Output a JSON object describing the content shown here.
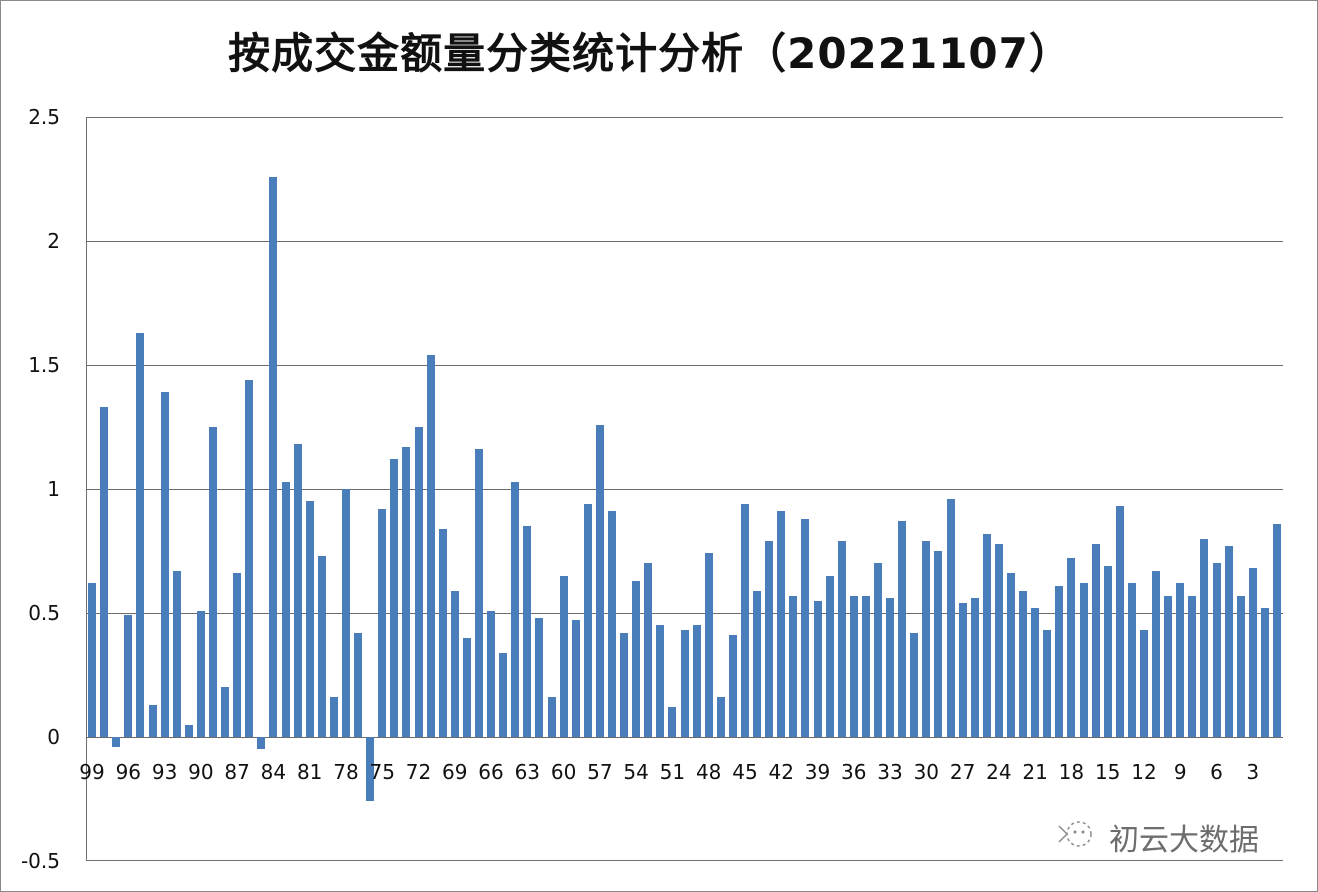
{
  "chart_data": {
    "type": "bar",
    "title": "按成交金额量分类统计分析（20221107）",
    "xlabel": "",
    "ylabel": "",
    "ylim": [
      -0.5,
      2.5
    ],
    "yticks": [
      "2.5",
      "2",
      "1.5",
      "1",
      "0.5",
      "0",
      "-0.5"
    ],
    "grid": true,
    "legend": null,
    "bar_color": "#4a7ebb",
    "categories": [
      99,
      98,
      97,
      96,
      95,
      94,
      93,
      92,
      91,
      90,
      89,
      88,
      87,
      86,
      85,
      84,
      83,
      82,
      81,
      80,
      79,
      78,
      77,
      76,
      75,
      74,
      73,
      72,
      71,
      70,
      69,
      68,
      67,
      66,
      65,
      64,
      63,
      62,
      61,
      60,
      59,
      58,
      57,
      56,
      55,
      54,
      53,
      52,
      51,
      50,
      49,
      48,
      47,
      46,
      45,
      44,
      43,
      42,
      41,
      40,
      39,
      38,
      37,
      36,
      35,
      34,
      33,
      32,
      31,
      30,
      29,
      28,
      27,
      26,
      25,
      24,
      23,
      22,
      21,
      20,
      19,
      18,
      17,
      16,
      15,
      14,
      13,
      12,
      11,
      10,
      9,
      8,
      7,
      6,
      5,
      4,
      3,
      2,
      1
    ],
    "xtick_labels": [
      "99",
      "96",
      "93",
      "90",
      "87",
      "84",
      "81",
      "78",
      "75",
      "72",
      "69",
      "66",
      "63",
      "60",
      "57",
      "54",
      "51",
      "48",
      "45",
      "42",
      "39",
      "36",
      "33",
      "30",
      "27",
      "24",
      "21",
      "18",
      "15",
      "12",
      "9",
      "6",
      "3"
    ],
    "values": [
      0.62,
      1.33,
      -0.04,
      0.49,
      1.63,
      0.13,
      1.39,
      0.67,
      0.05,
      0.51,
      1.25,
      0.2,
      0.66,
      1.44,
      -0.05,
      2.26,
      1.03,
      1.18,
      0.95,
      0.73,
      0.16,
      1.0,
      0.42,
      -0.26,
      0.92,
      1.12,
      1.17,
      1.25,
      1.54,
      0.84,
      0.59,
      0.4,
      1.16,
      0.51,
      0.34,
      1.03,
      0.85,
      0.48,
      0.16,
      0.65,
      0.47,
      0.94,
      1.26,
      0.91,
      0.42,
      0.63,
      0.7,
      0.45,
      0.12,
      0.43,
      0.45,
      0.74,
      0.16,
      0.41,
      0.94,
      0.59,
      0.79,
      0.91,
      0.57,
      0.88,
      0.55,
      0.65,
      0.79,
      0.57,
      0.57,
      0.7,
      0.56,
      0.87,
      0.42,
      0.79,
      0.75,
      0.96,
      0.54,
      0.56,
      0.82,
      0.78,
      0.66,
      0.59,
      0.52,
      0.43,
      0.61,
      0.72,
      0.62,
      0.78,
      0.69,
      0.93,
      0.62,
      0.43,
      0.67,
      0.57,
      0.62,
      0.57,
      0.8,
      0.7,
      0.77,
      0.57,
      0.68,
      0.52,
      0.86
    ]
  },
  "watermark": {
    "icon": "wechat-official-account-icon",
    "text": "初云大数据"
  }
}
